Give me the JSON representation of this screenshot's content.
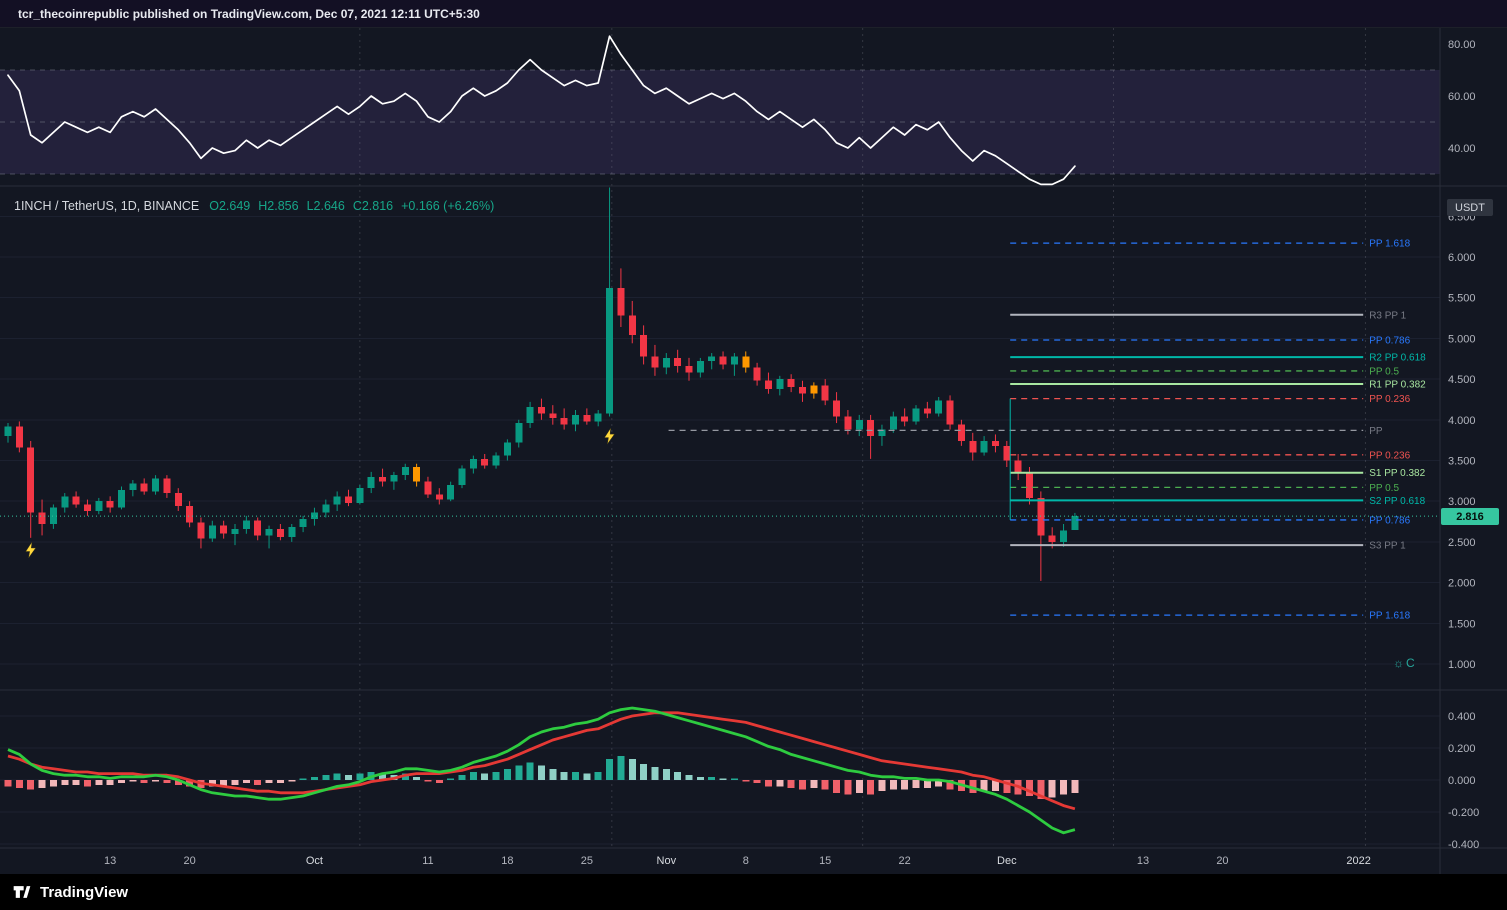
{
  "page": {
    "author": "tcr_thecoinrepublic",
    "publish_suffix": " published on TradingView.com, Dec 07, 2021 12:11 UTC+5:30"
  },
  "legend": {
    "symbol_label": "1INCH / TetherUS, 1D, BINANCE",
    "open_label": "O2.649",
    "high_label": "H2.856",
    "low_label": "L2.646",
    "close_label": "C2.816",
    "change_label": "+0.166 (+6.26%)"
  },
  "axes": {
    "currency_badge": "USDT",
    "last_price": "2.816",
    "price_ticks": [
      "6.500",
      "6.000",
      "5.500",
      "5.000",
      "4.500",
      "4.000",
      "3.500",
      "3.000",
      "2.500",
      "2.000",
      "1.500",
      "1.000"
    ],
    "rsi_ticks": [
      "80.00",
      "60.00",
      "40.00"
    ],
    "macd_ticks": [
      "0.400",
      "0.200",
      "0.000",
      "-0.200",
      "-0.400"
    ],
    "time_ticks": [
      {
        "label": "13",
        "i": 9
      },
      {
        "label": "20",
        "i": 16
      },
      {
        "label": "Oct",
        "i": 27,
        "major": true
      },
      {
        "label": "11",
        "i": 37
      },
      {
        "label": "18",
        "i": 44
      },
      {
        "label": "25",
        "i": 51
      },
      {
        "label": "Nov",
        "i": 58,
        "major": true
      },
      {
        "label": "8",
        "i": 65
      },
      {
        "label": "15",
        "i": 72
      },
      {
        "label": "22",
        "i": 79
      },
      {
        "label": "Dec",
        "i": 88,
        "major": true
      },
      {
        "label": "13",
        "i": 100
      },
      {
        "label": "20",
        "i": 107
      },
      {
        "label": "2022",
        "i": 119,
        "major": true
      }
    ]
  },
  "branding": {
    "logo_text": "TradingView"
  },
  "colors": {
    "up": "#089981",
    "down": "#f23645",
    "orange": "#ff9800",
    "rsi_line": "#ffffff",
    "rsi_band": "rgba(126,87,194,0.16)",
    "rsi_level": "#787b86",
    "macd_fast": "#2ecc40",
    "macd_slow": "#e53935",
    "hist_pos_strong": "#22ab94",
    "hist_pos_light": "#8fd0c6",
    "hist_neg_strong": "#f0616a",
    "hist_neg_light": "#f2b8ba",
    "grid": "#1c2130",
    "vgrid": "rgba(150,153,163,0.25)",
    "separator": "#2a2e39",
    "axis_text": "#b2b5be",
    "axis_text_major": "#d8dbe0",
    "last_price_line": "#36c6a0",
    "marker": "#ffd83d"
  },
  "chart_data": {
    "type": "candlestick",
    "title": "1INCH / TetherUS, 1D, BINANCE",
    "panes": [
      "RSI",
      "price",
      "MACD"
    ],
    "price_ylim": [
      0.68,
      6.87
    ],
    "rsi_ylim": [
      26,
      86
    ],
    "macd_ylim": [
      -0.45,
      0.56
    ],
    "rsi_levels": [
      70,
      50,
      30
    ],
    "vgrid_indices": [
      31.0,
      53.2,
      75.3,
      97.4,
      119.6
    ],
    "last_price": 2.816,
    "candles": [
      [
        3.8,
        3.96,
        3.72,
        3.92
      ],
      [
        3.92,
        3.98,
        3.6,
        3.66
      ],
      [
        3.66,
        3.74,
        2.55,
        2.86
      ],
      [
        2.86,
        3.02,
        2.58,
        2.72
      ],
      [
        2.72,
        2.96,
        2.66,
        2.92
      ],
      [
        2.92,
        3.1,
        2.86,
        3.06
      ],
      [
        3.06,
        3.12,
        2.92,
        2.96
      ],
      [
        2.96,
        3.02,
        2.82,
        2.88
      ],
      [
        2.88,
        3.04,
        2.84,
        3.0
      ],
      [
        3.0,
        3.06,
        2.86,
        2.92
      ],
      [
        2.92,
        3.18,
        2.9,
        3.14
      ],
      [
        3.14,
        3.26,
        3.06,
        3.22
      ],
      [
        3.22,
        3.28,
        3.08,
        3.12
      ],
      [
        3.12,
        3.32,
        3.08,
        3.28
      ],
      [
        3.28,
        3.32,
        3.04,
        3.1
      ],
      [
        3.1,
        3.16,
        2.88,
        2.94
      ],
      [
        2.94,
        3.0,
        2.68,
        2.74
      ],
      [
        2.74,
        2.8,
        2.42,
        2.54
      ],
      [
        2.54,
        2.76,
        2.5,
        2.7
      ],
      [
        2.7,
        2.76,
        2.54,
        2.6
      ],
      [
        2.6,
        2.72,
        2.46,
        2.66
      ],
      [
        2.66,
        2.82,
        2.6,
        2.76
      ],
      [
        2.76,
        2.8,
        2.52,
        2.58
      ],
      [
        2.58,
        2.7,
        2.42,
        2.66
      ],
      [
        2.66,
        2.72,
        2.52,
        2.56
      ],
      [
        2.56,
        2.72,
        2.5,
        2.68
      ],
      [
        2.68,
        2.82,
        2.62,
        2.78
      ],
      [
        2.78,
        2.92,
        2.7,
        2.86
      ],
      [
        2.86,
        3.02,
        2.8,
        2.96
      ],
      [
        2.96,
        3.12,
        2.88,
        3.06
      ],
      [
        3.06,
        3.14,
        2.94,
        2.98
      ],
      [
        2.98,
        3.2,
        2.96,
        3.16
      ],
      [
        3.16,
        3.36,
        3.1,
        3.3
      ],
      [
        3.3,
        3.4,
        3.18,
        3.24
      ],
      [
        3.24,
        3.36,
        3.14,
        3.32
      ],
      [
        3.32,
        3.46,
        3.26,
        3.42
      ],
      [
        3.42,
        3.46,
        3.18,
        3.24
      ],
      [
        3.24,
        3.3,
        3.04,
        3.08
      ],
      [
        3.08,
        3.16,
        2.96,
        3.02
      ],
      [
        3.02,
        3.24,
        3.0,
        3.2
      ],
      [
        3.2,
        3.44,
        3.16,
        3.4
      ],
      [
        3.4,
        3.56,
        3.34,
        3.52
      ],
      [
        3.52,
        3.58,
        3.4,
        3.44
      ],
      [
        3.44,
        3.6,
        3.4,
        3.56
      ],
      [
        3.56,
        3.76,
        3.5,
        3.72
      ],
      [
        3.72,
        4.0,
        3.66,
        3.96
      ],
      [
        3.96,
        4.22,
        3.9,
        4.16
      ],
      [
        4.16,
        4.26,
        4.0,
        4.08
      ],
      [
        4.08,
        4.18,
        3.94,
        4.02
      ],
      [
        4.02,
        4.14,
        3.88,
        3.94
      ],
      [
        3.94,
        4.12,
        3.86,
        4.06
      ],
      [
        4.06,
        4.14,
        3.94,
        3.98
      ],
      [
        3.98,
        4.12,
        3.92,
        4.08
      ],
      [
        4.08,
        6.9,
        4.04,
        5.62
      ],
      [
        5.62,
        5.86,
        5.14,
        5.28
      ],
      [
        5.28,
        5.46,
        4.94,
        5.04
      ],
      [
        5.04,
        5.16,
        4.68,
        4.78
      ],
      [
        4.78,
        4.92,
        4.54,
        4.64
      ],
      [
        4.64,
        4.82,
        4.56,
        4.76
      ],
      [
        4.76,
        4.86,
        4.58,
        4.66
      ],
      [
        4.66,
        4.76,
        4.48,
        4.58
      ],
      [
        4.58,
        4.76,
        4.52,
        4.72
      ],
      [
        4.72,
        4.82,
        4.62,
        4.78
      ],
      [
        4.78,
        4.84,
        4.62,
        4.68
      ],
      [
        4.68,
        4.82,
        4.54,
        4.78
      ],
      [
        4.78,
        4.84,
        4.58,
        4.64
      ],
      [
        4.64,
        4.7,
        4.42,
        4.48
      ],
      [
        4.48,
        4.58,
        4.32,
        4.38
      ],
      [
        4.38,
        4.54,
        4.3,
        4.5
      ],
      [
        4.5,
        4.56,
        4.34,
        4.4
      ],
      [
        4.4,
        4.48,
        4.22,
        4.32
      ],
      [
        4.32,
        4.46,
        4.26,
        4.42
      ],
      [
        4.42,
        4.5,
        4.18,
        4.24
      ],
      [
        4.24,
        4.34,
        3.96,
        4.04
      ],
      [
        4.04,
        4.12,
        3.82,
        3.88
      ],
      [
        3.88,
        4.06,
        3.8,
        4.0
      ],
      [
        4.0,
        4.06,
        3.52,
        3.8
      ],
      [
        3.8,
        3.94,
        3.68,
        3.88
      ],
      [
        3.88,
        4.1,
        3.84,
        4.04
      ],
      [
        4.04,
        4.14,
        3.92,
        3.98
      ],
      [
        3.98,
        4.18,
        3.94,
        4.14
      ],
      [
        4.14,
        4.22,
        4.02,
        4.08
      ],
      [
        4.08,
        4.28,
        4.04,
        4.24
      ],
      [
        4.24,
        4.3,
        3.88,
        3.94
      ],
      [
        3.94,
        4.0,
        3.68,
        3.74
      ],
      [
        3.74,
        3.84,
        3.5,
        3.6
      ],
      [
        3.6,
        3.8,
        3.56,
        3.74
      ],
      [
        3.74,
        3.82,
        3.6,
        3.68
      ],
      [
        3.68,
        3.74,
        3.42,
        3.5
      ],
      [
        3.5,
        3.58,
        3.26,
        3.34
      ],
      [
        3.34,
        3.42,
        2.96,
        3.04
      ],
      [
        3.04,
        3.12,
        2.02,
        2.58
      ],
      [
        2.58,
        2.68,
        2.42,
        2.5
      ],
      [
        2.5,
        2.72,
        2.44,
        2.64
      ],
      [
        2.649,
        2.856,
        2.646,
        2.816
      ]
    ],
    "candle_color_overrides": {
      "36": "orange",
      "65": "orange",
      "71": "orange"
    },
    "rsi": [
      68,
      62,
      45,
      42,
      46,
      50,
      48,
      46,
      48,
      46,
      52,
      54,
      52,
      55,
      51,
      47,
      42,
      36,
      40,
      38,
      39,
      43,
      40,
      43,
      41,
      44,
      47,
      50,
      53,
      56,
      53,
      56,
      60,
      57,
      58,
      61,
      58,
      52,
      50,
      54,
      60,
      63,
      60,
      62,
      65,
      70,
      74,
      70,
      67,
      64,
      66,
      64,
      65,
      83,
      76,
      70,
      64,
      61,
      63,
      60,
      57,
      59,
      61,
      59,
      61,
      58,
      54,
      51,
      54,
      51,
      48,
      51,
      47,
      42,
      40,
      44,
      40,
      44,
      48,
      45,
      49,
      47,
      50,
      44,
      39,
      35,
      39,
      37,
      34,
      31,
      28,
      26,
      26,
      28,
      33
    ],
    "macd": {
      "histogram": [
        -0.04,
        -0.05,
        -0.06,
        -0.05,
        -0.04,
        -0.03,
        -0.03,
        -0.04,
        -0.03,
        -0.03,
        -0.02,
        -0.01,
        -0.02,
        -0.01,
        -0.02,
        -0.03,
        -0.04,
        -0.05,
        -0.04,
        -0.04,
        -0.03,
        -0.02,
        -0.03,
        -0.02,
        -0.02,
        -0.01,
        0.01,
        0.02,
        0.03,
        0.04,
        0.03,
        0.04,
        0.05,
        0.04,
        0.03,
        0.04,
        0.02,
        -0.01,
        -0.02,
        0.01,
        0.03,
        0.05,
        0.04,
        0.05,
        0.07,
        0.09,
        0.11,
        0.09,
        0.07,
        0.05,
        0.05,
        0.04,
        0.05,
        0.13,
        0.15,
        0.13,
        0.1,
        0.08,
        0.07,
        0.05,
        0.03,
        0.02,
        0.02,
        0.01,
        0.01,
        -0.01,
        -0.02,
        -0.04,
        -0.04,
        -0.05,
        -0.06,
        -0.05,
        -0.06,
        -0.08,
        -0.09,
        -0.08,
        -0.09,
        -0.07,
        -0.06,
        -0.06,
        -0.05,
        -0.05,
        -0.04,
        -0.06,
        -0.07,
        -0.08,
        -0.07,
        -0.07,
        -0.08,
        -0.09,
        -0.1,
        -0.12,
        -0.11,
        -0.09,
        -0.08
      ],
      "fast": [
        0.19,
        0.16,
        0.1,
        0.06,
        0.04,
        0.03,
        0.03,
        0.02,
        0.02,
        0.01,
        0.02,
        0.02,
        0.02,
        0.03,
        0.02,
        0.0,
        -0.03,
        -0.06,
        -0.08,
        -0.09,
        -0.1,
        -0.1,
        -0.11,
        -0.12,
        -0.12,
        -0.11,
        -0.1,
        -0.08,
        -0.06,
        -0.04,
        -0.03,
        -0.01,
        0.02,
        0.04,
        0.05,
        0.07,
        0.07,
        0.06,
        0.05,
        0.06,
        0.08,
        0.11,
        0.13,
        0.15,
        0.18,
        0.22,
        0.27,
        0.3,
        0.32,
        0.33,
        0.35,
        0.36,
        0.38,
        0.42,
        0.44,
        0.45,
        0.44,
        0.43,
        0.41,
        0.39,
        0.37,
        0.35,
        0.33,
        0.31,
        0.29,
        0.27,
        0.24,
        0.21,
        0.19,
        0.16,
        0.14,
        0.12,
        0.1,
        0.08,
        0.06,
        0.05,
        0.03,
        0.02,
        0.02,
        0.01,
        0.01,
        0.0,
        0.0,
        -0.01,
        -0.03,
        -0.05,
        -0.07,
        -0.09,
        -0.12,
        -0.16,
        -0.2,
        -0.25,
        -0.3,
        -0.33,
        -0.31
      ],
      "slow": [
        0.15,
        0.13,
        0.1,
        0.08,
        0.07,
        0.06,
        0.05,
        0.05,
        0.04,
        0.04,
        0.04,
        0.04,
        0.03,
        0.03,
        0.03,
        0.02,
        0.0,
        -0.02,
        -0.03,
        -0.04,
        -0.05,
        -0.06,
        -0.07,
        -0.07,
        -0.08,
        -0.08,
        -0.08,
        -0.07,
        -0.06,
        -0.05,
        -0.04,
        -0.03,
        -0.01,
        0.0,
        0.01,
        0.03,
        0.04,
        0.04,
        0.04,
        0.05,
        0.06,
        0.08,
        0.09,
        0.11,
        0.13,
        0.16,
        0.19,
        0.22,
        0.25,
        0.27,
        0.29,
        0.31,
        0.32,
        0.35,
        0.38,
        0.4,
        0.41,
        0.42,
        0.42,
        0.42,
        0.41,
        0.4,
        0.39,
        0.38,
        0.37,
        0.36,
        0.34,
        0.32,
        0.3,
        0.28,
        0.26,
        0.24,
        0.22,
        0.2,
        0.18,
        0.16,
        0.14,
        0.12,
        0.11,
        0.1,
        0.09,
        0.08,
        0.07,
        0.06,
        0.05,
        0.03,
        0.02,
        0.0,
        -0.02,
        -0.04,
        -0.07,
        -0.1,
        -0.13,
        -0.16,
        -0.18
      ]
    },
    "pivots": [
      {
        "label": "PP 1.618",
        "price": 6.17,
        "color": "#2979ff",
        "style": "dashed",
        "from": 88.3,
        "to": 119.4
      },
      {
        "label": "R3 PP 1",
        "price": 5.29,
        "color": "#b2b5be",
        "label_color": "#787b86",
        "style": "solid",
        "from": 88.3,
        "to": 119.4
      },
      {
        "label": "PP 0.786",
        "price": 4.98,
        "color": "#2979ff",
        "style": "dashed",
        "from": 88.3,
        "to": 119.4
      },
      {
        "label": "R2 PP 0.618",
        "price": 4.77,
        "color": "#00b8a9",
        "style": "solid",
        "from": 88.3,
        "to": 119.4
      },
      {
        "label": "PP 0.5",
        "price": 4.6,
        "color": "#4caf50",
        "style": "dashed",
        "from": 88.3,
        "to": 119.4
      },
      {
        "label": "R1 PP 0.382",
        "price": 4.44,
        "color": "#a8e6a0",
        "style": "solid",
        "from": 88.3,
        "to": 119.4
      },
      {
        "label": "PP 0.236",
        "price": 4.26,
        "color": "#ef5350",
        "style": "dashed",
        "from": 88.3,
        "to": 119.4
      },
      {
        "label": "PP",
        "price": 3.87,
        "color": "#9598a1",
        "label_color": "#787b86",
        "style": "dashed",
        "from": 58.2,
        "to": 119.4
      },
      {
        "label": "PP 0.236",
        "price": 3.57,
        "color": "#ef5350",
        "style": "dashed",
        "from": 88.3,
        "to": 119.4
      },
      {
        "label": "S1 PP 0.382",
        "price": 3.35,
        "color": "#a8e6a0",
        "style": "solid",
        "from": 88.3,
        "to": 119.4
      },
      {
        "label": "PP 0.5",
        "price": 3.17,
        "color": "#4caf50",
        "style": "dashed",
        "from": 88.3,
        "to": 119.4
      },
      {
        "label": "S2 PP 0.618",
        "price": 3.01,
        "color": "#00b8a9",
        "style": "solid",
        "from": 88.3,
        "to": 119.4
      },
      {
        "label": "PP 0.786",
        "price": 2.77,
        "color": "#2979ff",
        "style": "dashed",
        "from": 88.3,
        "to": 119.4
      },
      {
        "label": "S3 PP 1",
        "price": 2.46,
        "color": "#b2b5be",
        "label_color": "#787b86",
        "style": "solid",
        "from": 88.3,
        "to": 119.4
      },
      {
        "label": "PP 1.618",
        "price": 1.6,
        "color": "#2979ff",
        "style": "dashed",
        "from": 88.3,
        "to": 119.4
      }
    ],
    "pivot_anchor": {
      "index": 88.3,
      "price_top": 4.26,
      "price_bottom": 2.77,
      "color": "#00b8a9"
    },
    "markers": [
      {
        "i": 2,
        "price": 2.4,
        "icon": "lightning"
      },
      {
        "i": 53,
        "price": 3.8,
        "icon": "lightning"
      }
    ]
  },
  "corner_widget": {
    "glyph": "☼C"
  }
}
